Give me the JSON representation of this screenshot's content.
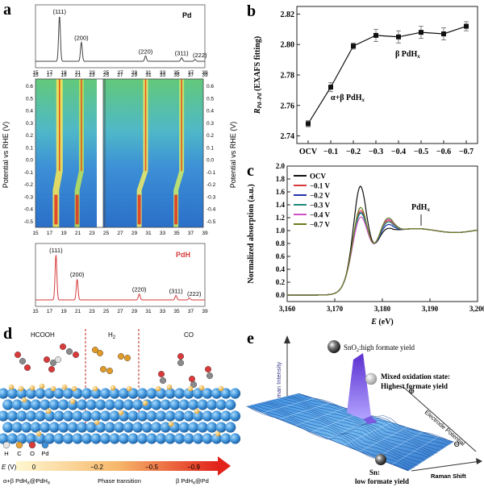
{
  "panels": {
    "a": {
      "label": "a",
      "pd_title": "Pd",
      "pdh_title": "PdH",
      "pd_peaks": [
        {
          "hkl": "(111)",
          "x": 18.4,
          "h": 1.0
        },
        {
          "hkl": "(200)",
          "x": 21.5,
          "h": 0.42
        },
        {
          "hkl": "(220)",
          "x": 30.6,
          "h": 0.12
        },
        {
          "hkl": "(311)",
          "x": 35.7,
          "h": 0.08
        },
        {
          "hkl": "(222)",
          "x": 37.6,
          "h": 0.04
        }
      ],
      "pdh_peaks": [
        {
          "hkl": "(111)",
          "x": 17.9,
          "h": 1.0
        },
        {
          "hkl": "(200)",
          "x": 20.9,
          "h": 0.46
        },
        {
          "hkl": "(220)",
          "x": 29.7,
          "h": 0.13
        },
        {
          "hkl": "(311)",
          "x": 34.9,
          "h": 0.1
        },
        {
          "hkl": "(222)",
          "x": 36.8,
          "h": 0.04
        }
      ],
      "x_ticks_left": [
        "15",
        "17",
        "19",
        "21",
        "23"
      ],
      "x_ticks_right": [
        "25",
        "27",
        "29",
        "31",
        "33",
        "35",
        "37",
        "39"
      ],
      "y_ticks": [
        "0.6",
        "0.5",
        "0.4",
        "0.3",
        "0.2",
        "0.1",
        "0.0",
        "-0.1",
        "-0.2",
        "-0.3",
        "-0.4",
        "-0.5"
      ],
      "ylabel": "Potential vs RHE (V)"
    },
    "b": {
      "label": "b",
      "ylabel": "R",
      "ylabel_sub": "Pd–Pd",
      "ylabel_tail": " (EXAFS fitting)",
      "annot_alpha": "α+β PdH",
      "annot_beta": "β PdH",
      "annot_sub": "x"
    },
    "c": {
      "label": "c",
      "ylabel": "Normalized absorption (a.u.)",
      "xlabel_var": "E",
      "xlabel_unit": " (eV)",
      "annot": "PdH",
      "annot_sub": "x"
    },
    "d": {
      "label": "d",
      "region_labels": [
        "HCOOH",
        "H",
        "CO"
      ],
      "h2_sub": "2",
      "legend": [
        "H",
        "C",
        "O",
        "Pd"
      ],
      "legend_colors": [
        "#e6e6e6",
        "#e5a33a",
        "#d83a3a",
        "#3b8fd6"
      ],
      "scale_label": "E",
      "scale_unit": "(V)",
      "scale_ticks": [
        "0",
        "−0.2",
        "−0.5",
        "−0.9"
      ],
      "bottom_left": "α+β PdH",
      "bottom_left_sub1": "x",
      "bottom_left_mid": "@PdH",
      "bottom_left_sub2": "x",
      "bottom_mid": "Phase transition",
      "bottom_right": "β PdH",
      "bottom_right_sub": "x",
      "bottom_right_tail": "@Pd"
    },
    "e": {
      "label": "e",
      "annot_sno2": "SnO",
      "annot_sno2_sub": "2",
      "annot_sno2_tail": ":high formate yield",
      "annot_mixed_1": "Mixed oxidation state:",
      "annot_mixed_2": "Highest formate yield",
      "annot_sn_1": "Sn:",
      "annot_sn_2": "low formate yield",
      "axis_intensity": "Raman Intensity",
      "axis_potential": "Electrode Potential",
      "axis_shift": "Raman Shift",
      "plus": "⊕",
      "minus": "⊖"
    }
  },
  "chart_data": [
    {
      "type": "line",
      "panel": "b",
      "categories": [
        "OCV",
        "−0.1",
        "−0.2",
        "−0.3",
        "−0.4",
        "−0.5",
        "−0.6",
        "−0.7"
      ],
      "values": [
        2.748,
        2.772,
        2.799,
        2.806,
        2.805,
        2.808,
        2.807,
        2.812
      ],
      "errors": [
        0.002,
        0.003,
        0.002,
        0.004,
        0.004,
        0.004,
        0.004,
        0.003
      ],
      "ylim": [
        2.735,
        2.825
      ],
      "yticks": [
        "2.74",
        "2.76",
        "2.78",
        "2.80",
        "2.82"
      ],
      "grid": false
    },
    {
      "type": "line",
      "panel": "c",
      "xlim": [
        3160,
        3200
      ],
      "ylim": [
        -0.1,
        2.0
      ],
      "xticks": [
        "3,160",
        "3,170",
        "3,180",
        "3,190",
        "3,200"
      ],
      "yticks": [
        "0.0",
        "0.2",
        "0.4",
        "0.6",
        "0.8",
        "1.0",
        "1.2",
        "1.4",
        "1.6",
        "1.8",
        "2.0"
      ],
      "legend_position": "top-left",
      "series": [
        {
          "name": "OCV",
          "color": "#111111",
          "peak": 1.78,
          "hump": 0.04
        },
        {
          "name": "−0.1 V",
          "color": "#d63a3a",
          "peak": 1.4,
          "hump": 0.16
        },
        {
          "name": "−0.2 V",
          "color": "#2233aa",
          "peak": 1.37,
          "hump": 0.1
        },
        {
          "name": "−0.3 V",
          "color": "#1d8a7a",
          "peak": 1.36,
          "hump": 0.14
        },
        {
          "name": "−0.4 V",
          "color": "#d24fc8",
          "peak": 1.3,
          "hump": 0.18
        },
        {
          "name": "−0.7 V",
          "color": "#6a7d1d",
          "peak": 1.45,
          "hump": 0.2
        }
      ]
    }
  ]
}
